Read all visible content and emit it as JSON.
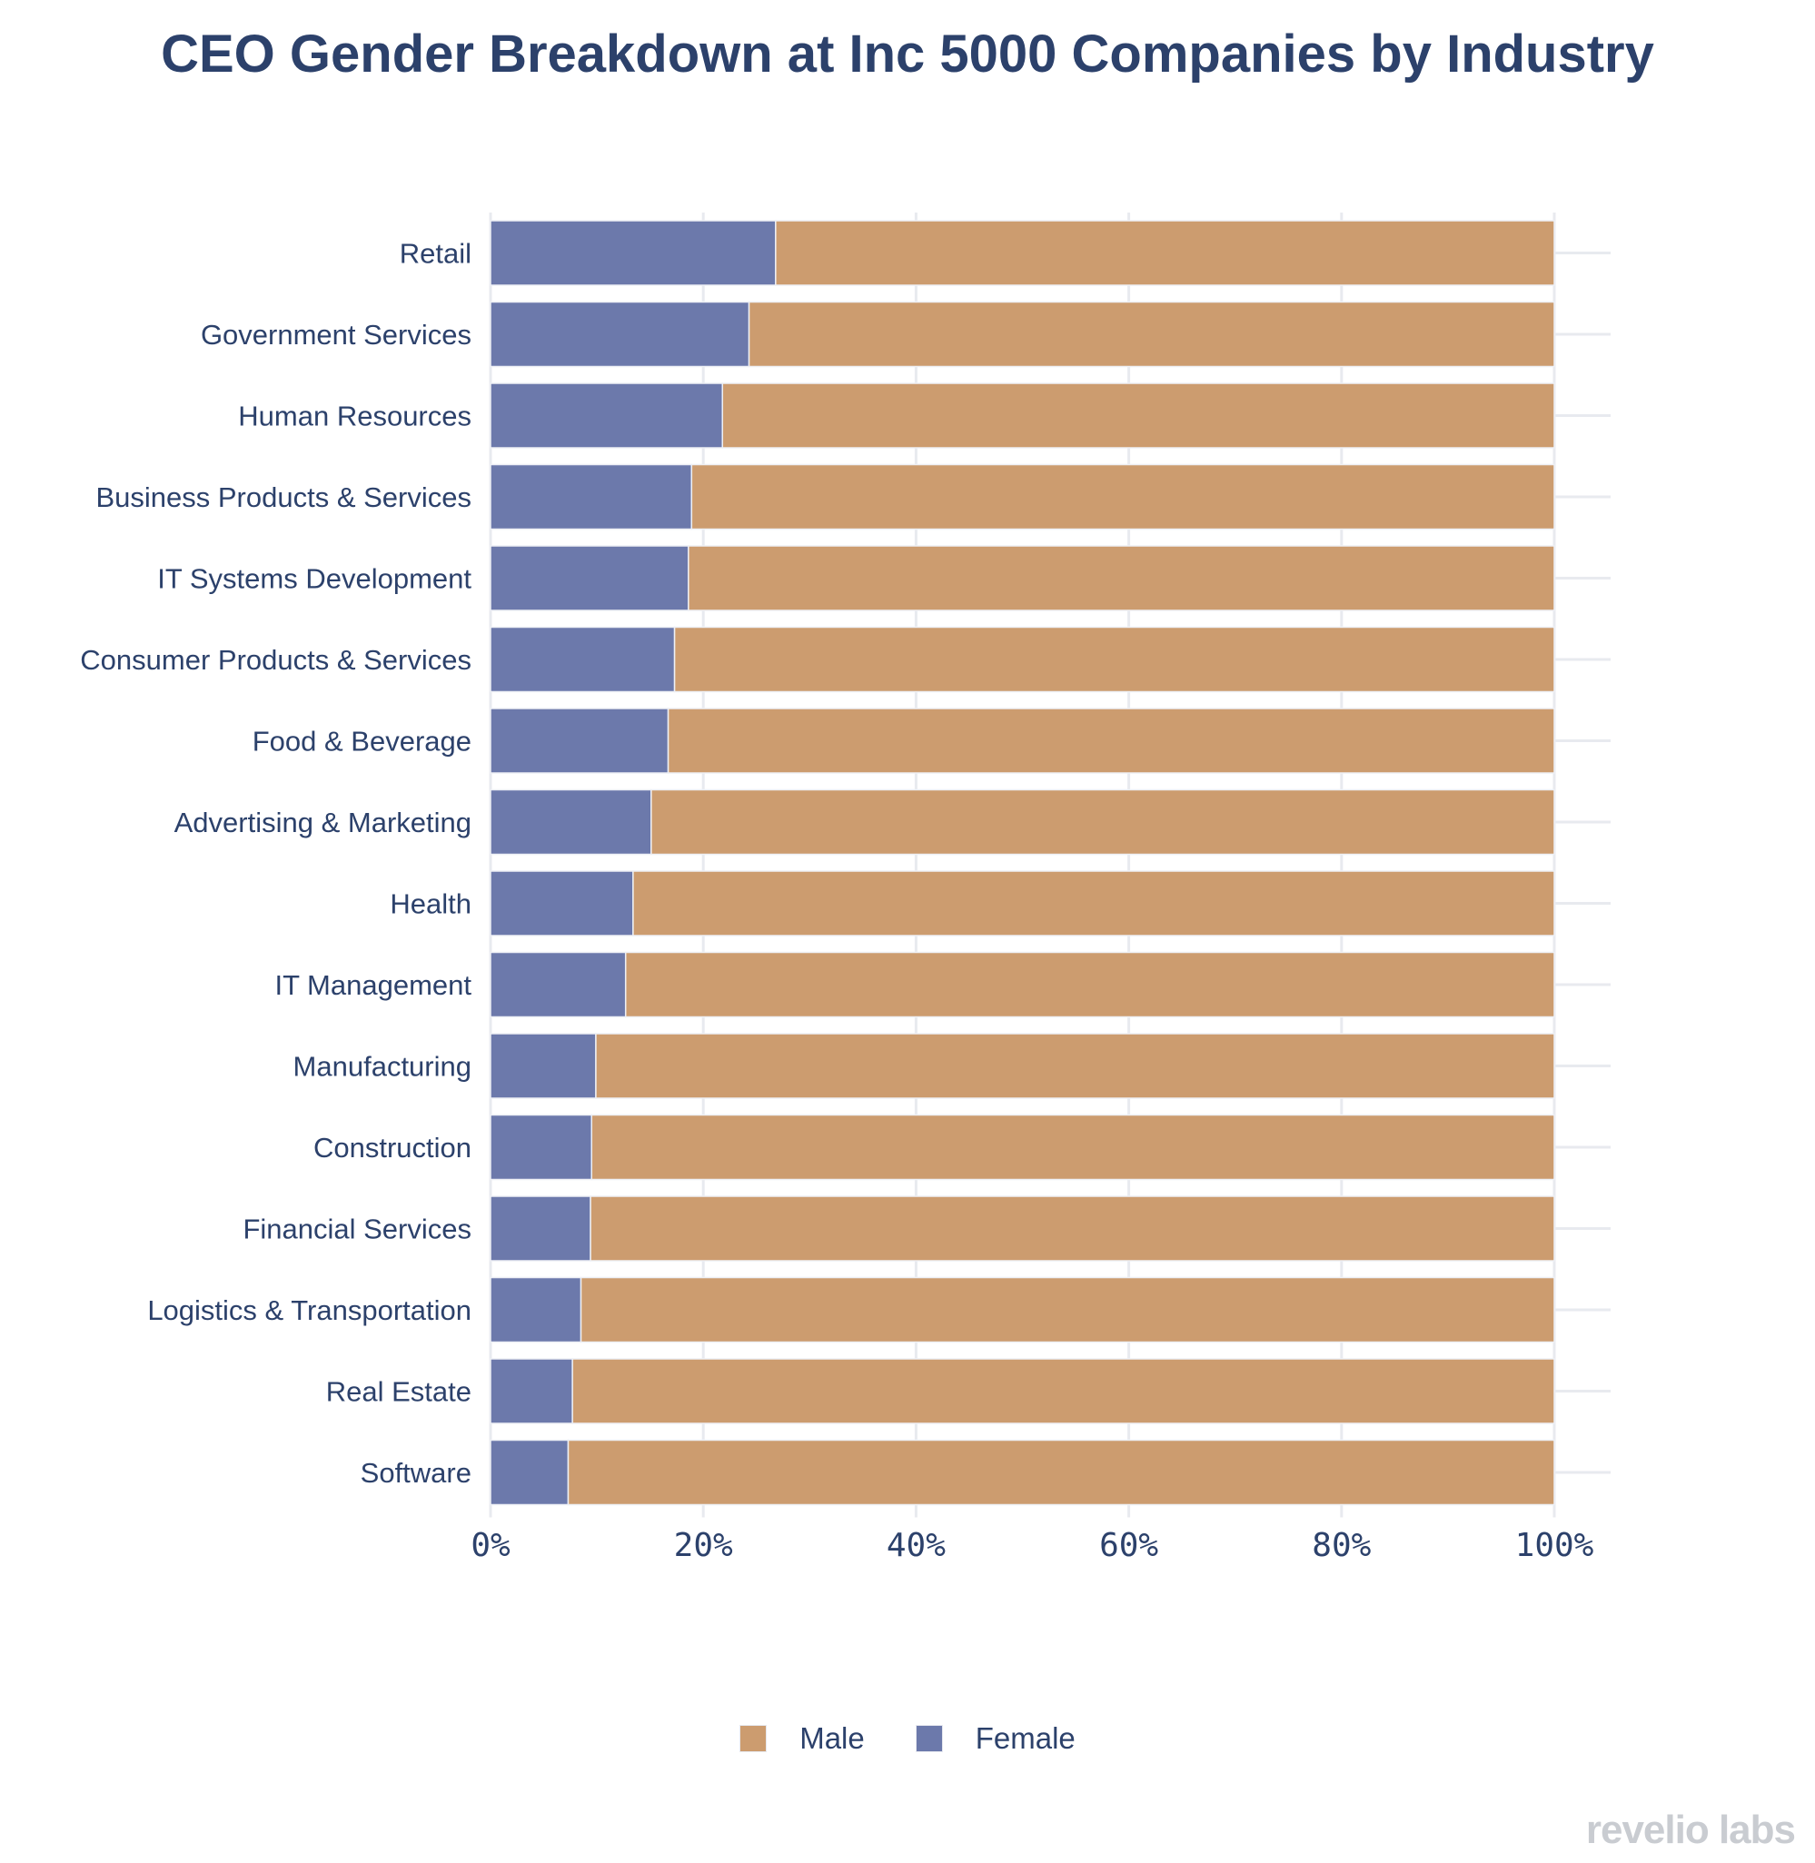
{
  "chart_data": {
    "type": "bar",
    "orientation": "horizontal",
    "stacked": true,
    "title": "CEO Gender Breakdown at Inc 5000 Companies by Industry",
    "xlabel": "",
    "ylabel": "",
    "xlim": [
      0,
      100
    ],
    "x_ticks": [
      0,
      20,
      40,
      60,
      80,
      100
    ],
    "x_tick_labels": [
      "0%",
      "20%",
      "40%",
      "60%",
      "80%",
      "100%"
    ],
    "grid": true,
    "legend_position": "bottom",
    "categories": [
      "Retail",
      "Government Services",
      "Human Resources",
      "Business Products & Services",
      "IT Systems Development",
      "Consumer Products & Services",
      "Food & Beverage",
      "Advertising & Marketing",
      "Health",
      "IT Management",
      "Manufacturing",
      "Construction",
      "Financial Services",
      "Logistics & Transportation",
      "Real Estate",
      "Software"
    ],
    "series": [
      {
        "name": "Female",
        "color": "#6c79ab",
        "values": [
          26.8,
          24.3,
          21.8,
          18.9,
          18.6,
          17.3,
          16.7,
          15.1,
          13.4,
          12.7,
          9.9,
          9.5,
          9.4,
          8.5,
          7.7,
          7.3
        ]
      },
      {
        "name": "Male",
        "color": "#cc9c6f",
        "values": [
          73.2,
          75.7,
          78.2,
          81.1,
          81.4,
          82.7,
          83.3,
          84.9,
          86.6,
          87.3,
          90.1,
          90.5,
          90.6,
          91.5,
          92.3,
          92.7
        ]
      }
    ],
    "legend": [
      {
        "name": "Male",
        "color": "#cc9c6f"
      },
      {
        "name": "Female",
        "color": "#6c79ab"
      }
    ]
  },
  "branding": {
    "watermark": "revelio labs"
  },
  "colors": {
    "text": "#2c416b",
    "grid": "#e8eaef"
  }
}
